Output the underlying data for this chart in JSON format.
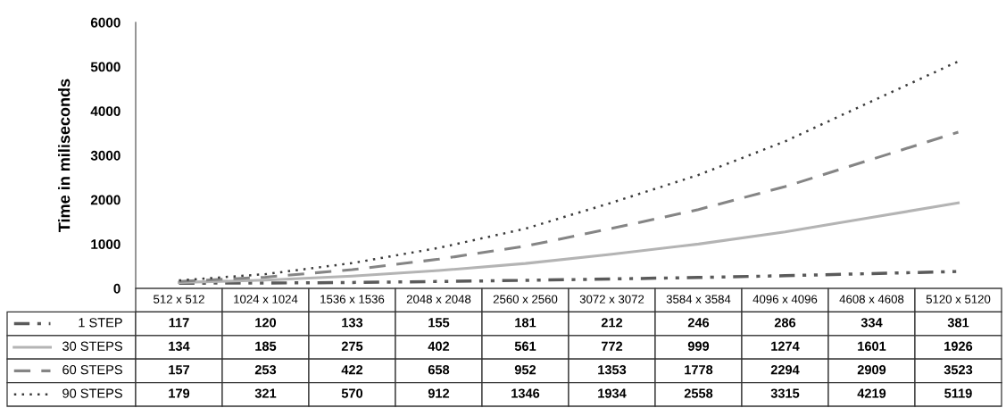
{
  "chart_data": {
    "type": "line",
    "ylabel": "Time in miliseconds",
    "categories": [
      "512 x 512",
      "1024 x 1024",
      "1536 x 1536",
      "2048 x 2048",
      "2560 x 2560",
      "3072 x 3072",
      "3584 x 3584",
      "4096 x 4096",
      "4608 x 4608",
      "5120 x 5120"
    ],
    "series": [
      {
        "name": "1 STEP",
        "color": "#5a5a5a",
        "line_style": "dashdotdot",
        "values": [
          117,
          120,
          133,
          155,
          181,
          212,
          246,
          286,
          334,
          381
        ]
      },
      {
        "name": "30 STEPS",
        "color": "#b4b4b4",
        "line_style": "solid",
        "values": [
          134,
          185,
          275,
          402,
          561,
          772,
          999,
          1274,
          1601,
          1926
        ]
      },
      {
        "name": "60 STEPS",
        "color": "#858585",
        "line_style": "dashed",
        "values": [
          157,
          253,
          422,
          658,
          952,
          1353,
          1778,
          2294,
          2909,
          3523
        ]
      },
      {
        "name": "90 STEPS",
        "color": "#3c3c3c",
        "line_style": "dotted",
        "values": [
          179,
          321,
          570,
          912,
          1346,
          1934,
          2558,
          3315,
          4219,
          5119
        ]
      }
    ],
    "ylim": [
      0,
      6000
    ],
    "yticks": [
      0,
      1000,
      2000,
      3000,
      4000,
      5000,
      6000
    ],
    "data_labels": true,
    "legend": "bottom",
    "grid": false
  }
}
